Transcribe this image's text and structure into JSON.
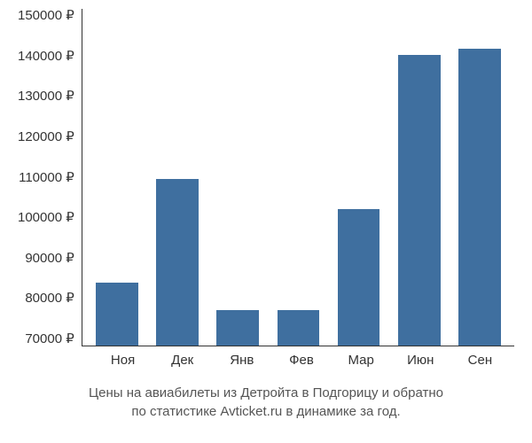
{
  "chart": {
    "type": "bar",
    "y_ticks": [
      "150000 ₽",
      "140000 ₽",
      "130000 ₽",
      "120000 ₽",
      "110000 ₽",
      "100000 ₽",
      "90000 ₽",
      "80000 ₽",
      "70000 ₽"
    ],
    "ylim": [
      70000,
      150000
    ],
    "categories": [
      "Ноя",
      "Дек",
      "Янв",
      "Фев",
      "Мар",
      "Июн",
      "Сен"
    ],
    "values": [
      85000,
      109500,
      78500,
      78500,
      102500,
      139000,
      140500
    ],
    "bar_color": "#3f6f9f",
    "axis_color": "#333333",
    "background_color": "#ffffff",
    "text_color": "#333333",
    "caption_color": "#555555",
    "bar_width": 0.7,
    "label_fontsize": 15,
    "caption_fontsize": 15
  },
  "caption_line1": "Цены на авиабилеты из Детройта в Подгорицу и обратно",
  "caption_line2": "по статистике Avticket.ru в динамике за год."
}
